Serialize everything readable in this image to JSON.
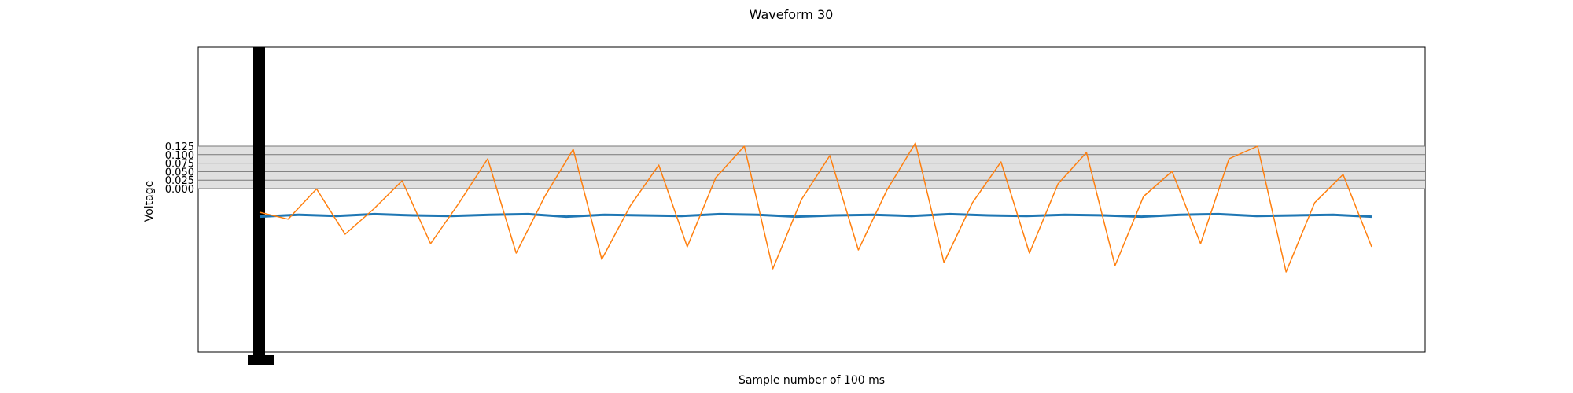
{
  "chart_data": {
    "type": "line",
    "title": "Waveform 30",
    "xlabel": "Sample number of 100 ms",
    "ylabel": "Voltage",
    "y_ticks": [
      "0.000",
      "0.025",
      "0.050",
      "0.075",
      "0.100",
      "0.125"
    ],
    "grid": true,
    "series": [
      {
        "color": "#1f77b4",
        "values": [
          -0.02,
          0.01,
          -0.01,
          0.02,
          0.0,
          -0.01,
          0.01,
          0.02,
          -0.02,
          0.01,
          0.0,
          -0.01,
          0.02,
          0.01,
          -0.02,
          0.0,
          0.01,
          -0.01,
          0.02,
          0.0,
          -0.01,
          0.01,
          0.0,
          -0.02,
          0.01,
          0.02,
          -0.01,
          0.0,
          0.01,
          -0.02
        ]
      },
      {
        "color": "#ff7f0e",
        "values": [
          0.05,
          -0.06,
          0.42,
          -0.3,
          0.1,
          0.55,
          -0.45,
          0.2,
          0.9,
          -0.6,
          0.3,
          1.05,
          -0.7,
          0.15,
          0.8,
          -0.5,
          0.6,
          1.1,
          -0.85,
          0.25,
          0.95,
          -0.55,
          0.4,
          1.15,
          -0.75,
          0.2,
          0.85,
          -0.6,
          0.5,
          1.0,
          -0.8,
          0.3,
          0.7,
          -0.45,
          0.9,
          1.1,
          -0.9,
          0.2,
          0.65,
          -0.5
        ]
      }
    ]
  }
}
